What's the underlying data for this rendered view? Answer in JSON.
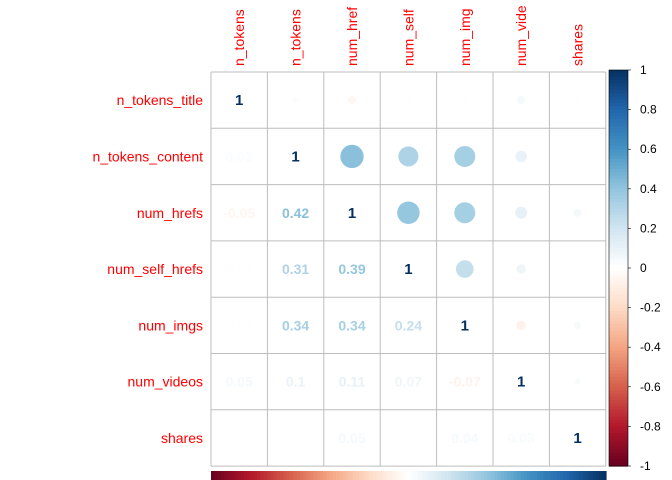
{
  "chart_data": {
    "type": "heatmap",
    "variables": [
      "n_tokens_title",
      "n_tokens_content",
      "num_hrefs",
      "num_self_hrefs",
      "num_imgs",
      "num_videos",
      "shares"
    ],
    "column_labels_visible": [
      "n_tokens",
      "n_tokens",
      "num_href",
      "num_self",
      "num_img",
      "num_vide",
      "shares"
    ],
    "matrix": [
      [
        1,
        0.02,
        -0.05,
        0.01,
        0.01,
        0.05,
        0.01
      ],
      [
        0.02,
        1,
        0.42,
        0.31,
        0.34,
        0.1,
        0.0
      ],
      [
        -0.05,
        0.42,
        1,
        0.39,
        0.34,
        0.11,
        0.05
      ],
      [
        0.01,
        0.31,
        0.39,
        1,
        0.24,
        0.07,
        0.0
      ],
      [
        0.01,
        0.34,
        0.34,
        0.24,
        1,
        -0.07,
        0.04
      ],
      [
        0.05,
        0.1,
        0.11,
        0.07,
        -0.07,
        1,
        0.03
      ],
      [
        0.01,
        0.0,
        0.05,
        0.0,
        0.04,
        0.03,
        1
      ]
    ],
    "lower_labels": [
      [
        "",
        "",
        "",
        "",
        "",
        "",
        ""
      ],
      [
        "0.02",
        "",
        "",
        "",
        "",
        "",
        ""
      ],
      [
        "-0.05",
        "0.42",
        "",
        "",
        "",
        "",
        ""
      ],
      [
        "0.01",
        "0.31",
        "0.39",
        "",
        "",
        "",
        ""
      ],
      [
        "0.01",
        "0.34",
        "0.34",
        "0.24",
        "",
        "",
        ""
      ],
      [
        "0.05",
        "0.1",
        "0.11",
        "0.07",
        "-0.07",
        "",
        ""
      ],
      [
        "",
        "",
        "0.05",
        "",
        "0.04",
        "0.03",
        ""
      ]
    ],
    "diagonal_label": "1",
    "upper_style": "circle",
    "lower_style": "number",
    "colorbar": {
      "range": [
        -1,
        1
      ],
      "ticks": [
        "1",
        "0.8",
        "0.6",
        "0.4",
        "0.2",
        "0",
        "-0.2",
        "-0.4",
        "-0.6",
        "-0.8",
        "-1"
      ],
      "colors": [
        "#67001f",
        "#b2182b",
        "#d6604d",
        "#f4a582",
        "#fddbc7",
        "#ffffff",
        "#d1e5f0",
        "#92c5de",
        "#4393c3",
        "#2166ac",
        "#053061"
      ]
    },
    "grid": true
  }
}
